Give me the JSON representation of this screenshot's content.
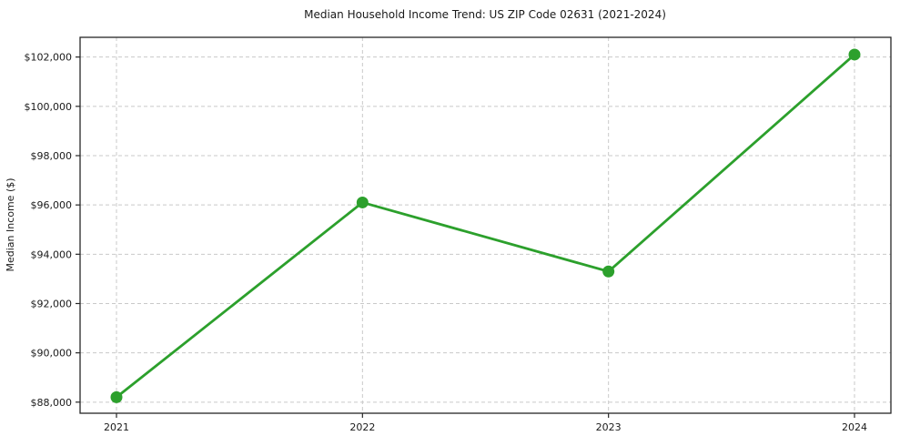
{
  "figure": {
    "background_color": "#ffffff",
    "text_color": "#1a1a1a",
    "spine_color": "#262626",
    "grid_color": "#c9c9c9"
  },
  "chart_data": {
    "type": "line",
    "title": "Median Household Income Trend: US ZIP Code 02631 (2021-2024)",
    "xlabel": "",
    "ylabel": "Median Income ($)",
    "categories": [
      "2021",
      "2022",
      "2023",
      "2024"
    ],
    "series": [
      {
        "name": "Median Household Income",
        "values": [
          88200,
          96100,
          93300,
          102100
        ],
        "color": "#2ca02c",
        "marker": "circle",
        "line_width": 2.8,
        "marker_radius": 6.5
      }
    ],
    "ylim": [
      87550,
      102800
    ],
    "yticks": [
      88000,
      90000,
      92000,
      94000,
      96000,
      98000,
      100000,
      102000
    ],
    "ytick_labels": [
      "$88,000",
      "$90,000",
      "$92,000",
      "$94,000",
      "$96,000",
      "$98,000",
      "$100,000",
      "$102,000"
    ],
    "grid": true,
    "grid_style": "dashed",
    "legend": "none"
  }
}
